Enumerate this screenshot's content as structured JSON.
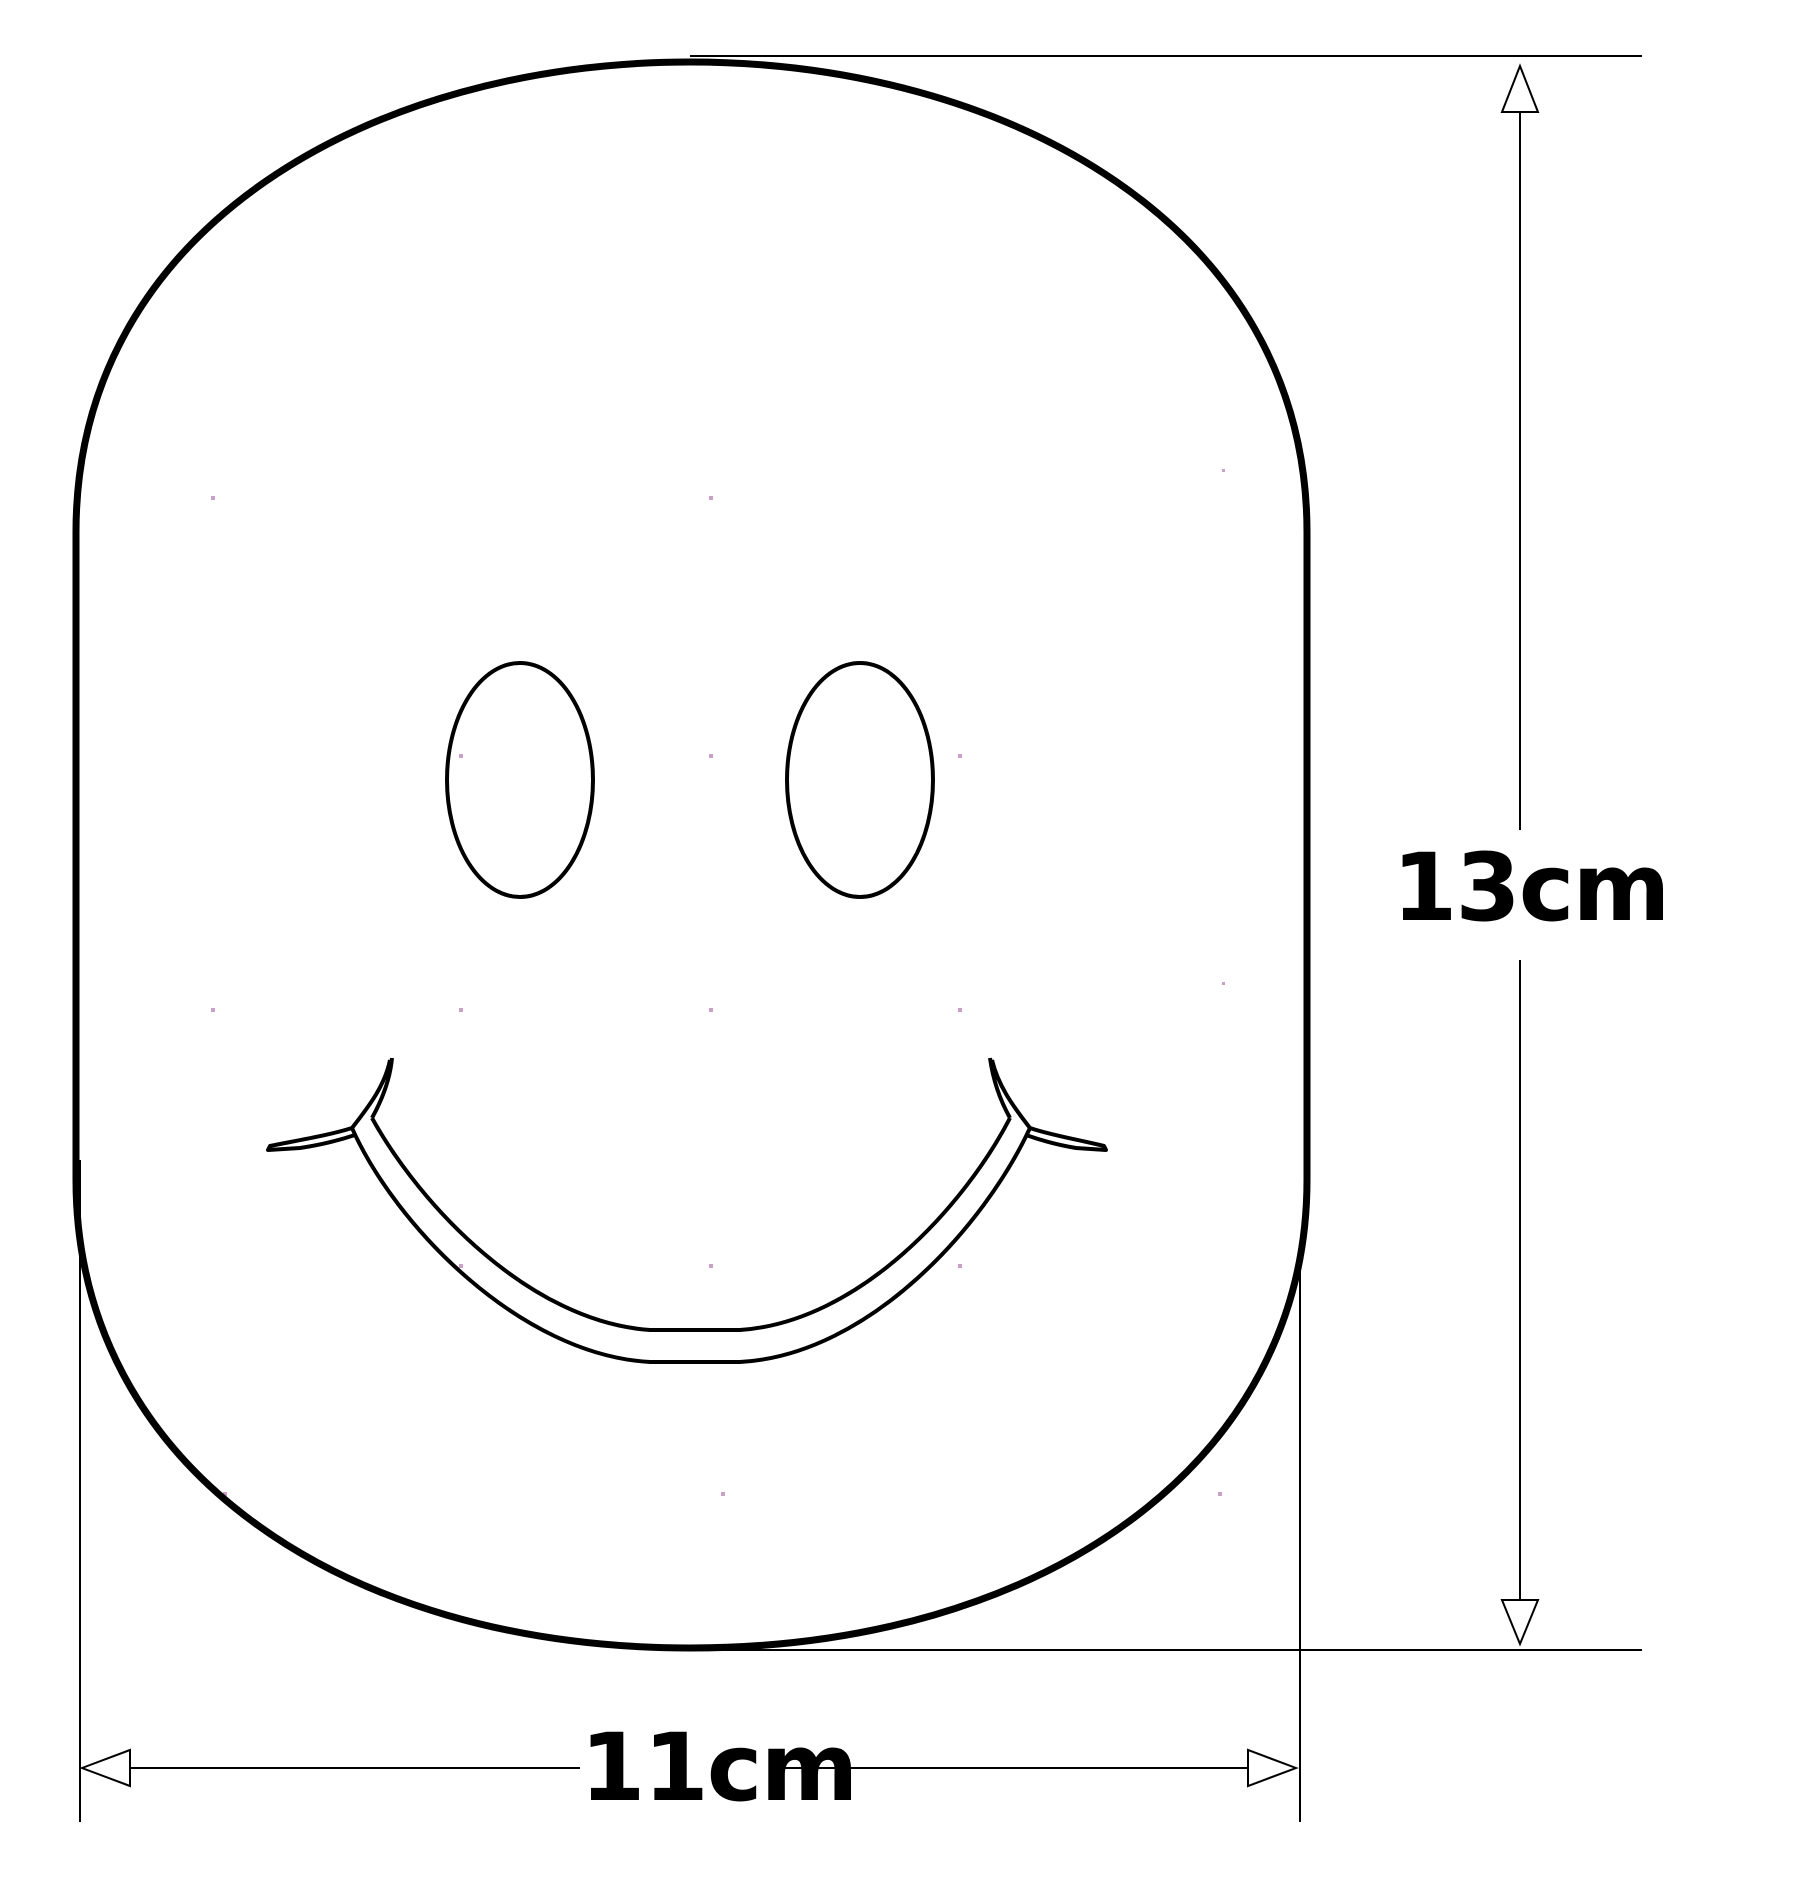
{
  "diagram": {
    "height_label": "13cm",
    "width_label": "11cm",
    "colors": {
      "stroke": "#000000",
      "dot": "#c8a0c8",
      "background": "#ffffff"
    },
    "icons": [
      "smiley-face",
      "dimension-arrow"
    ]
  }
}
